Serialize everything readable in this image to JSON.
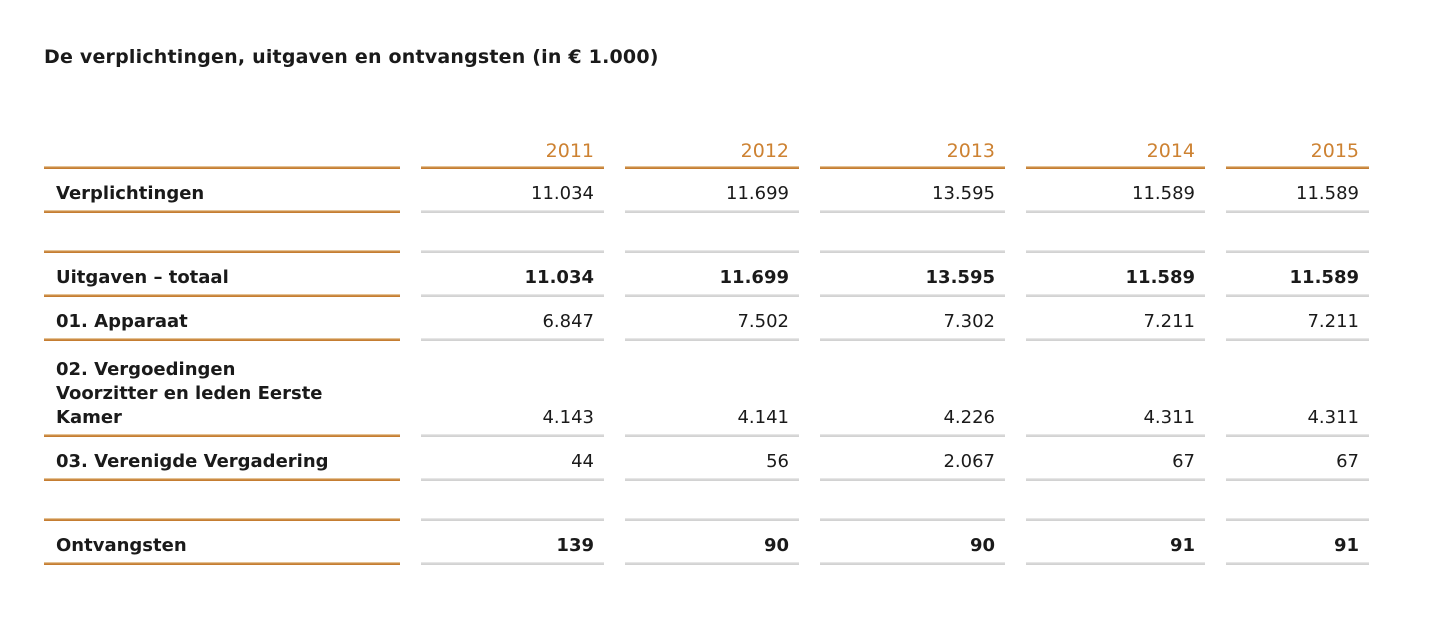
{
  "page": {
    "title": "De verplichtingen, uitgaven en ontvangsten (in € 1.000)"
  },
  "table": {
    "columns": [
      "2011",
      "2012",
      "2013",
      "2014",
      "2015"
    ],
    "rows": [
      {
        "kind": "data",
        "emphasis_values": false,
        "label": "Verplichtingen",
        "values": [
          "11.034",
          "11.699",
          "13.595",
          "11.589",
          "11.589"
        ]
      },
      {
        "kind": "spacer"
      },
      {
        "kind": "data",
        "emphasis_values": true,
        "label": "Uitgaven – totaal",
        "values": [
          "11.034",
          "11.699",
          "13.595",
          "11.589",
          "11.589"
        ]
      },
      {
        "kind": "data",
        "emphasis_values": false,
        "label": "01. Apparaat",
        "values": [
          "6.847",
          "7.502",
          "7.302",
          "7.211",
          "7.211"
        ]
      },
      {
        "kind": "data",
        "emphasis_values": false,
        "label": "02. Vergoedingen\nVoorzitter en leden Eerste\nKamer",
        "values": [
          "4.143",
          "4.141",
          "4.226",
          "4.311",
          "4.311"
        ]
      },
      {
        "kind": "data",
        "emphasis_values": false,
        "label": "03. Verenigde Vergadering",
        "values": [
          "44",
          "56",
          "2.067",
          "67",
          "67"
        ]
      },
      {
        "kind": "spacer"
      },
      {
        "kind": "data",
        "emphasis_values": true,
        "label": "Ontvangsten",
        "values": [
          "139",
          "90",
          "90",
          "91",
          "91"
        ]
      }
    ]
  },
  "colors": {
    "accent_orange_text": "#cd8232",
    "rule_orange": "#c57d31",
    "rule_gray": "#d2d2d2",
    "text": "#1a1a1a",
    "background": "#ffffff"
  }
}
